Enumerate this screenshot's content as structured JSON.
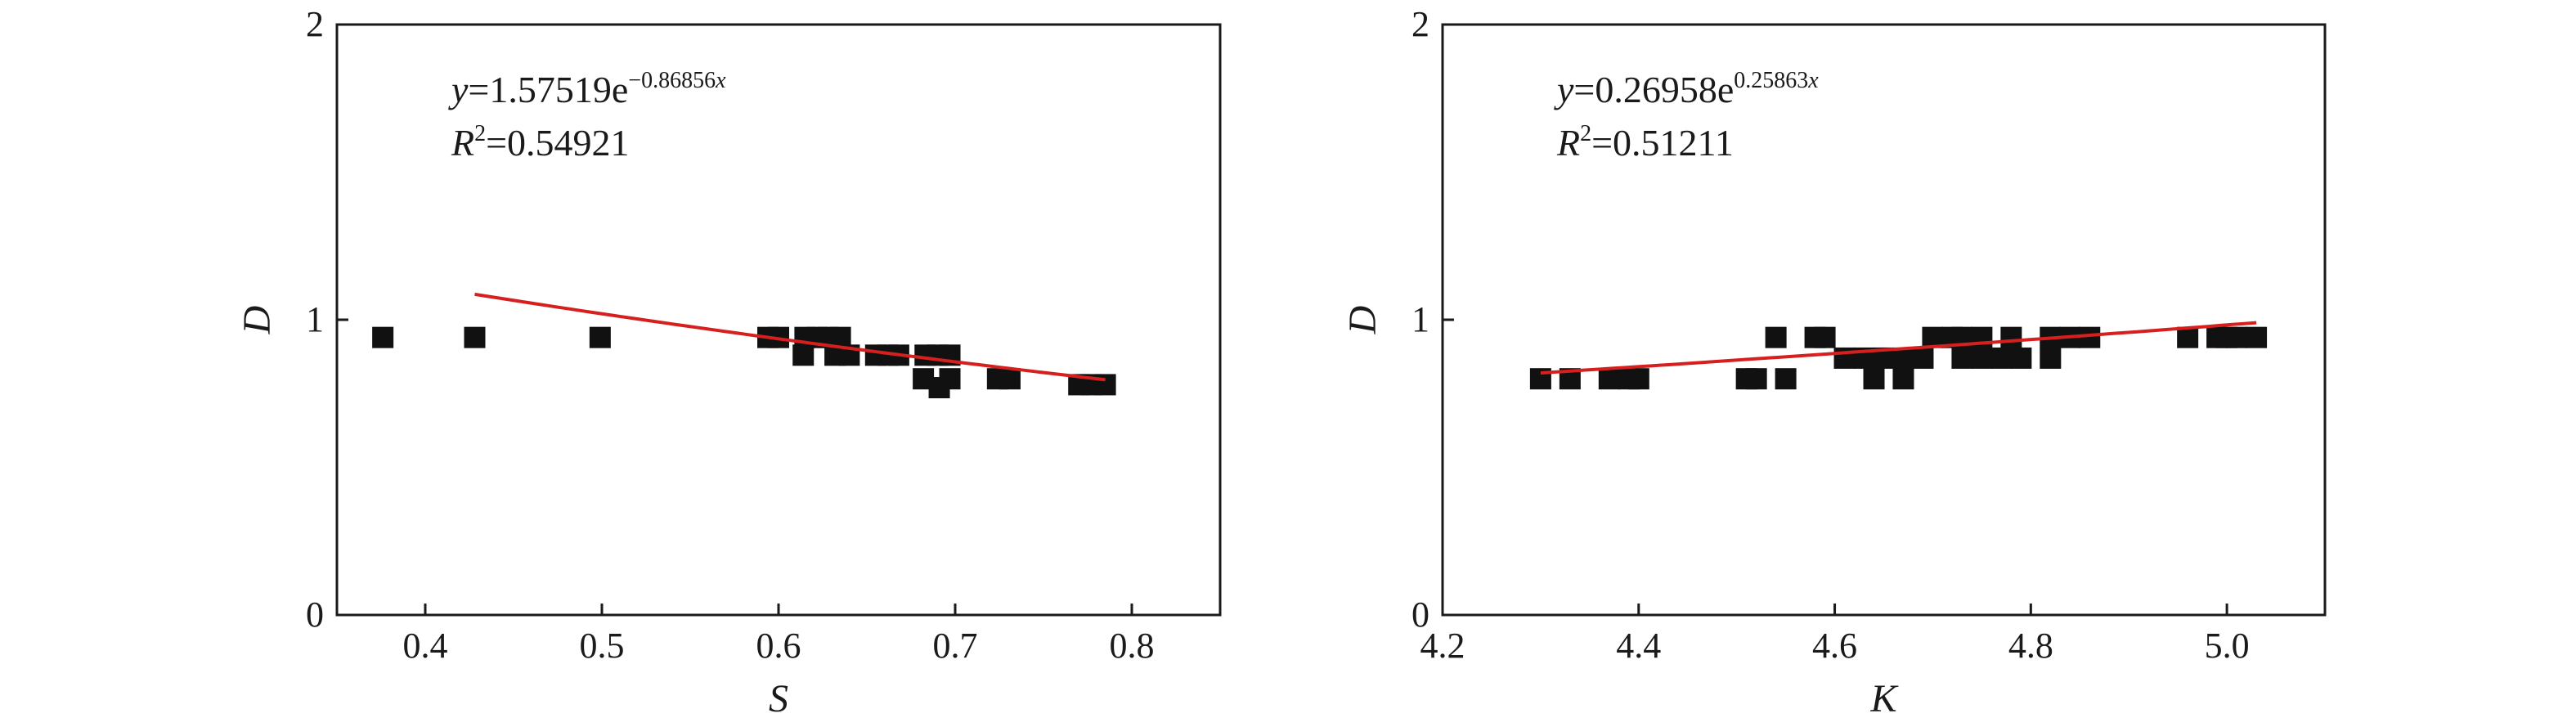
{
  "chart_data": [
    {
      "type": "scatter",
      "xlabel": "S",
      "ylabel": "D",
      "xlim": [
        0.35,
        0.85
      ],
      "ylim": [
        0,
        2
      ],
      "xticks": [
        "0.4",
        "0.5",
        "0.6",
        "0.7",
        "0.8"
      ],
      "yticks": [
        "0",
        "1",
        "2"
      ],
      "marker_color": "#111111",
      "fit_color": "#d62020",
      "fit": {
        "a": 1.57519,
        "b": -0.86856,
        "x_range": [
          0.428,
          0.785
        ]
      },
      "equation": {
        "y": "y",
        "eq": "=1.57519e",
        "exp": "−0.86856",
        "x": "x"
      },
      "r2": {
        "r": "R",
        "sup": "2",
        "value": "=0.54921"
      },
      "points": [
        [
          0.376,
          0.94
        ],
        [
          0.428,
          0.94
        ],
        [
          0.499,
          0.94
        ],
        [
          0.594,
          0.94
        ],
        [
          0.6,
          0.94
        ],
        [
          0.615,
          0.94
        ],
        [
          0.622,
          0.94
        ],
        [
          0.628,
          0.94
        ],
        [
          0.635,
          0.94
        ],
        [
          0.614,
          0.88
        ],
        [
          0.632,
          0.88
        ],
        [
          0.64,
          0.88
        ],
        [
          0.655,
          0.88
        ],
        [
          0.662,
          0.88
        ],
        [
          0.668,
          0.88
        ],
        [
          0.683,
          0.88
        ],
        [
          0.69,
          0.88
        ],
        [
          0.697,
          0.88
        ],
        [
          0.682,
          0.8
        ],
        [
          0.697,
          0.8
        ],
        [
          0.724,
          0.8
        ],
        [
          0.731,
          0.8
        ],
        [
          0.691,
          0.77
        ],
        [
          0.77,
          0.78
        ],
        [
          0.777,
          0.78
        ],
        [
          0.785,
          0.78
        ]
      ]
    },
    {
      "type": "scatter",
      "xlabel": "K",
      "ylabel": "D",
      "xlim": [
        4.2,
        5.1
      ],
      "ylim": [
        0,
        2
      ],
      "xticks": [
        "4.2",
        "4.4",
        "4.6",
        "4.8",
        "5.0"
      ],
      "yticks": [
        "0",
        "1",
        "2"
      ],
      "marker_color": "#111111",
      "fit_color": "#d62020",
      "fit": {
        "a": 0.26958,
        "b": 0.25863,
        "x_range": [
          4.3,
          5.03
        ]
      },
      "equation": {
        "y": "y",
        "eq": "=0.26958e",
        "exp": "0.25863",
        "x": "x"
      },
      "r2": {
        "r": "R",
        "sup": "2",
        "value": "=0.51211"
      },
      "points": [
        [
          4.3,
          0.8
        ],
        [
          4.33,
          0.8
        ],
        [
          4.37,
          0.8
        ],
        [
          4.39,
          0.8
        ],
        [
          4.4,
          0.8
        ],
        [
          4.51,
          0.8
        ],
        [
          4.52,
          0.8
        ],
        [
          4.55,
          0.8
        ],
        [
          4.64,
          0.8
        ],
        [
          4.67,
          0.8
        ],
        [
          4.54,
          0.94
        ],
        [
          4.58,
          0.94
        ],
        [
          4.59,
          0.94
        ],
        [
          4.61,
          0.87
        ],
        [
          4.63,
          0.87
        ],
        [
          4.65,
          0.87
        ],
        [
          4.67,
          0.87
        ],
        [
          4.69,
          0.87
        ],
        [
          4.7,
          0.94
        ],
        [
          4.72,
          0.94
        ],
        [
          4.73,
          0.94
        ],
        [
          4.75,
          0.94
        ],
        [
          4.78,
          0.94
        ],
        [
          4.73,
          0.87
        ],
        [
          4.75,
          0.87
        ],
        [
          4.77,
          0.87
        ],
        [
          4.79,
          0.87
        ],
        [
          4.82,
          0.87
        ],
        [
          4.82,
          0.94
        ],
        [
          4.84,
          0.94
        ],
        [
          4.86,
          0.94
        ],
        [
          4.96,
          0.94
        ],
        [
          4.99,
          0.94
        ],
        [
          5.0,
          0.94
        ],
        [
          5.01,
          0.94
        ],
        [
          5.03,
          0.94
        ]
      ]
    }
  ]
}
